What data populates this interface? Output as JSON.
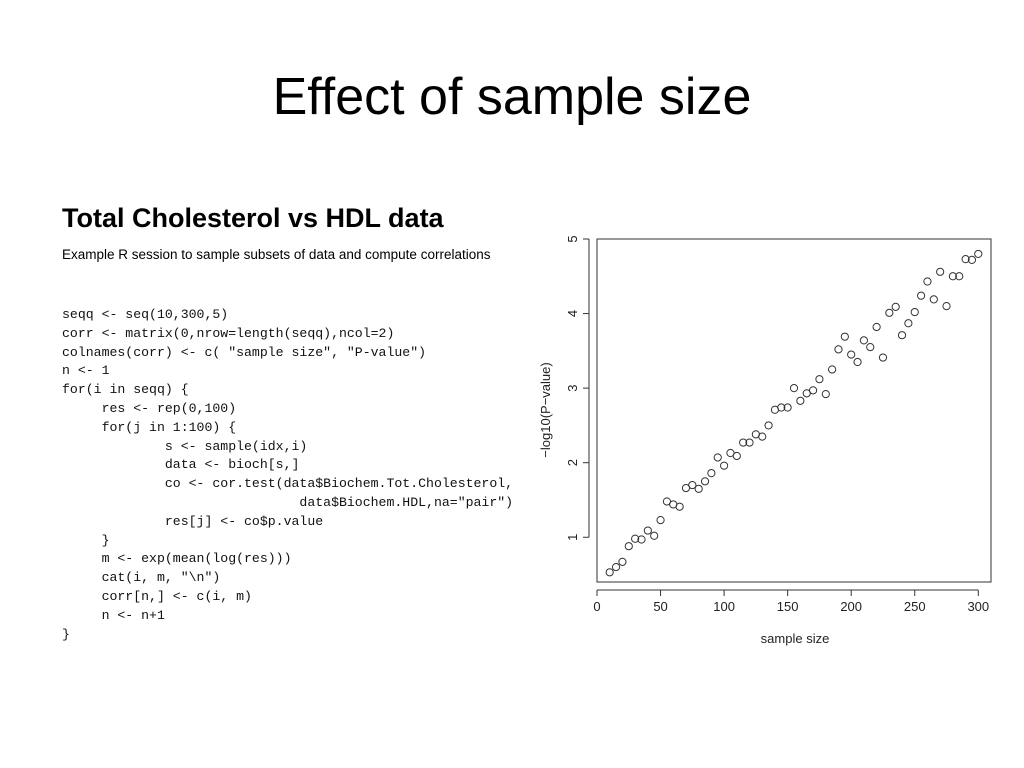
{
  "slide": {
    "title": "Effect of sample size",
    "subheading": "Total Cholesterol vs HDL data",
    "caption": "Example R session to sample subsets of data and compute correlations"
  },
  "code": [
    "seqq <- seq(10,300,5)",
    "corr <- matrix(0,nrow=length(seqq),ncol=2)",
    "colnames(corr) <- c( \"sample size\", \"P-value\")",
    "n <- 1",
    "for(i in seqq) {",
    "     res <- rep(0,100)",
    "     for(j in 1:100) {",
    "             s <- sample(idx,i)",
    "             data <- bioch[s,]",
    "             co <- cor.test(data$Biochem.Tot.Cholesterol,",
    "                              data$Biochem.HDL,na=\"pair\")",
    "             res[j] <- co$p.value",
    "     }",
    "     m <- exp(mean(log(res)))",
    "     cat(i, m, \"\\n\")",
    "     corr[n,] <- c(i, m)",
    "     n <- n+1",
    "}"
  ],
  "chart_data": {
    "type": "scatter",
    "xlabel": "sample size",
    "ylabel": "−log10(P−value)",
    "xlim": [
      0,
      310
    ],
    "ylim": [
      0.4,
      5.0
    ],
    "xticks": [
      0,
      50,
      100,
      150,
      200,
      250,
      300
    ],
    "yticks": [
      1,
      2,
      3,
      4,
      5
    ],
    "grid": false,
    "marker": "open-circle",
    "x": [
      10,
      15,
      20,
      25,
      30,
      35,
      40,
      45,
      50,
      55,
      60,
      65,
      70,
      75,
      80,
      85,
      90,
      95,
      100,
      105,
      110,
      115,
      120,
      125,
      130,
      135,
      140,
      145,
      150,
      155,
      160,
      165,
      170,
      175,
      180,
      185,
      190,
      195,
      200,
      205,
      210,
      215,
      220,
      225,
      230,
      235,
      240,
      245,
      250,
      255,
      260,
      265,
      270,
      275,
      280,
      285,
      290,
      295,
      300
    ],
    "y": [
      0.53,
      0.6,
      0.67,
      0.88,
      0.98,
      0.97,
      1.09,
      1.02,
      1.23,
      1.48,
      1.44,
      1.41,
      1.66,
      1.7,
      1.65,
      1.75,
      1.86,
      2.07,
      1.96,
      2.13,
      2.09,
      2.27,
      2.27,
      2.38,
      2.35,
      2.5,
      2.71,
      2.74,
      2.74,
      3.0,
      2.83,
      2.93,
      2.97,
      3.12,
      2.92,
      3.25,
      3.52,
      3.69,
      3.45,
      3.35,
      3.64,
      3.55,
      3.82,
      3.41,
      4.01,
      4.09,
      3.71,
      3.87,
      4.02,
      4.24,
      4.43,
      4.19,
      4.56,
      4.1,
      4.5,
      4.5,
      4.73,
      4.72,
      4.8
    ]
  }
}
